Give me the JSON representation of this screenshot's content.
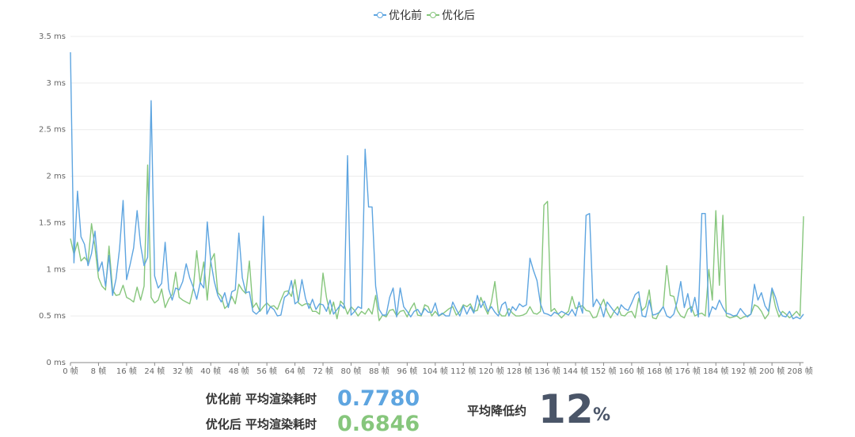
{
  "chart_data": {
    "type": "line",
    "series": [
      {
        "name": "优化前",
        "color": "#5ea5e0",
        "values": [
          3.33,
          1.07,
          1.84,
          1.35,
          1.27,
          1.04,
          1.17,
          1.41,
          0.98,
          1.08,
          0.82,
          1.15,
          0.72,
          0.9,
          1.22,
          1.74,
          0.89,
          1.05,
          1.23,
          1.63,
          1.26,
          1.04,
          1.13,
          2.81,
          0.93,
          0.8,
          0.85,
          1.29,
          0.79,
          0.67,
          0.8,
          0.78,
          0.87,
          1.06,
          0.91,
          0.81,
          0.68,
          0.86,
          0.8,
          1.51,
          1.09,
          0.87,
          0.72,
          0.65,
          0.75,
          0.59,
          0.76,
          0.78,
          1.39,
          0.91,
          0.75,
          0.76,
          0.55,
          0.52,
          0.56,
          1.57,
          0.52,
          0.6,
          0.57,
          0.5,
          0.51,
          0.7,
          0.73,
          0.88,
          0.63,
          0.66,
          0.89,
          0.69,
          0.58,
          0.68,
          0.57,
          0.63,
          0.62,
          0.55,
          0.67,
          0.52,
          0.57,
          0.62,
          0.58,
          2.22,
          0.51,
          0.55,
          0.6,
          0.58,
          2.29,
          1.67,
          1.67,
          0.82,
          0.57,
          0.51,
          0.51,
          0.7,
          0.8,
          0.49,
          0.8,
          0.6,
          0.55,
          0.49,
          0.55,
          0.57,
          0.51,
          0.58,
          0.54,
          0.54,
          0.64,
          0.5,
          0.53,
          0.5,
          0.5,
          0.65,
          0.57,
          0.5,
          0.61,
          0.52,
          0.6,
          0.53,
          0.72,
          0.59,
          0.66,
          0.55,
          0.6,
          0.54,
          0.5,
          0.62,
          0.65,
          0.5,
          0.6,
          0.56,
          0.63,
          0.6,
          0.62,
          1.12,
          0.99,
          0.88,
          0.63,
          0.53,
          0.52,
          0.5,
          0.54,
          0.52,
          0.55,
          0.53,
          0.51,
          0.57,
          0.5,
          0.65,
          0.53,
          1.58,
          1.6,
          0.6,
          0.68,
          0.62,
          0.49,
          0.65,
          0.6,
          0.55,
          0.51,
          0.62,
          0.58,
          0.56,
          0.64,
          0.73,
          0.76,
          0.5,
          0.49,
          0.67,
          0.51,
          0.52,
          0.54,
          0.6,
          0.5,
          0.48,
          0.52,
          0.66,
          0.87,
          0.59,
          0.74,
          0.54,
          0.7,
          0.49,
          1.6,
          1.6,
          0.49,
          0.6,
          0.57,
          0.67,
          0.59,
          0.53,
          0.52,
          0.5,
          0.51,
          0.58,
          0.53,
          0.49,
          0.52,
          0.84,
          0.67,
          0.75,
          0.61,
          0.55,
          0.8,
          0.7,
          0.56,
          0.5,
          0.49,
          0.55,
          0.47,
          0.49,
          0.47,
          0.52
        ]
      },
      {
        "name": "优化后",
        "color": "#86c67c",
        "values": [
          1.33,
          1.16,
          1.29,
          1.09,
          1.13,
          1.08,
          1.49,
          1.24,
          0.91,
          0.82,
          0.78,
          1.25,
          0.78,
          0.72,
          0.73,
          0.83,
          0.7,
          0.68,
          0.65,
          0.81,
          0.67,
          0.82,
          2.12,
          0.7,
          0.64,
          0.67,
          0.79,
          0.59,
          0.68,
          0.73,
          0.97,
          0.7,
          0.67,
          0.65,
          0.63,
          0.79,
          1.2,
          0.85,
          1.08,
          0.67,
          1.09,
          1.17,
          0.75,
          0.71,
          0.58,
          0.62,
          0.71,
          0.63,
          0.84,
          0.78,
          0.74,
          1.09,
          0.59,
          0.64,
          0.55,
          0.6,
          0.64,
          0.6,
          0.61,
          0.57,
          0.67,
          0.76,
          0.77,
          0.71,
          0.89,
          0.64,
          0.61,
          0.63,
          0.63,
          0.55,
          0.55,
          0.52,
          0.96,
          0.7,
          0.52,
          0.65,
          0.47,
          0.66,
          0.62,
          0.52,
          0.6,
          0.56,
          0.5,
          0.55,
          0.52,
          0.58,
          0.52,
          0.72,
          0.45,
          0.51,
          0.49,
          0.56,
          0.57,
          0.5,
          0.55,
          0.56,
          0.49,
          0.58,
          0.64,
          0.51,
          0.5,
          0.62,
          0.6,
          0.5,
          0.55,
          0.5,
          0.52,
          0.55,
          0.58,
          0.6,
          0.51,
          0.55,
          0.62,
          0.6,
          0.63,
          0.55,
          0.56,
          0.7,
          0.6,
          0.52,
          0.65,
          0.87,
          0.54,
          0.5,
          0.5,
          0.58,
          0.53,
          0.5,
          0.5,
          0.51,
          0.53,
          0.6,
          0.53,
          0.52,
          0.55,
          1.69,
          1.73,
          0.55,
          0.58,
          0.52,
          0.48,
          0.52,
          0.55,
          0.71,
          0.58,
          0.6,
          0.61,
          0.56,
          0.55,
          0.48,
          0.49,
          0.6,
          0.68,
          0.55,
          0.48,
          0.55,
          0.6,
          0.51,
          0.5,
          0.54,
          0.55,
          0.48,
          0.69,
          0.56,
          0.6,
          0.78,
          0.48,
          0.47,
          0.55,
          0.6,
          1.04,
          0.72,
          0.71,
          0.56,
          0.5,
          0.48,
          0.57,
          0.6,
          0.5,
          0.52,
          0.53,
          0.5,
          1.0,
          0.67,
          1.63,
          0.83,
          1.58,
          0.5,
          0.48,
          0.49,
          0.5,
          0.47,
          0.49,
          0.5,
          0.52,
          0.62,
          0.6,
          0.55,
          0.47,
          0.52,
          0.78,
          0.6,
          0.49,
          0.55,
          0.52,
          0.48,
          0.51,
          0.55,
          0.5,
          1.57
        ]
      }
    ],
    "x_start": 0,
    "x_tick_step": 8,
    "x_tick_suffix": " 帧",
    "y_ticks": [
      0,
      0.5,
      1,
      1.5,
      2,
      2.5,
      3,
      3.5
    ],
    "y_tick_suffix": " ms",
    "ylim": [
      0,
      3.5
    ],
    "grid": true,
    "legend_position": "top-center",
    "xlabel": "",
    "ylabel": "",
    "title": ""
  },
  "stats": {
    "before_label": "优化前 平均渲染耗时",
    "before_value": "0.7780",
    "after_label": "优化后 平均渲染耗时",
    "after_value": "0.6846",
    "reduce_label": "平均降低约",
    "reduce_value": "12",
    "reduce_unit": "%"
  }
}
